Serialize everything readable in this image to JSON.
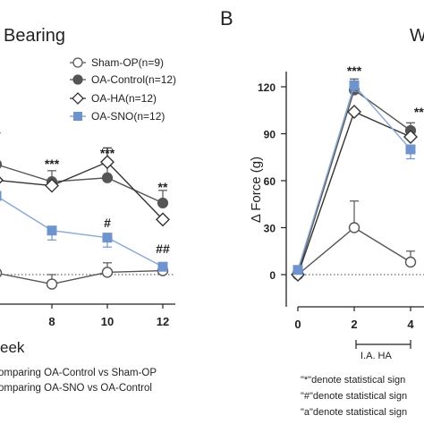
{
  "panel_a": {
    "title": "Bearing",
    "xlabel": "eek",
    "legend": [
      "Sham-OP(n=9)",
      "OA-Control(n=12)",
      "OA-HA(n=12)",
      "OA-SNO(n=12)"
    ],
    "footnotes": [
      "omparing OA-Control vs Sham-OP",
      "omparing OA-SNO vs OA-Control"
    ]
  },
  "panel_b": {
    "letter": "B",
    "title": "W",
    "ylabel": "Δ Force (g)",
    "bracket_label": "I.A. HA",
    "footnotes": [
      "\"*\"denote statistical sign",
      "\"#\"denote statistical sign",
      "\"a\"denote statistical sign"
    ]
  },
  "colors": {
    "sham": "#555555",
    "control": "#555555",
    "ha": "#333333",
    "sno": "#6f94cd",
    "sno_line": "#88a8d8"
  },
  "chart_data": [
    {
      "type": "line",
      "title": "Bearing",
      "xlabel": "eek",
      "ylabel": "",
      "x": [
        6,
        8,
        10,
        12
      ],
      "xticks": [
        "8",
        "10",
        "12"
      ],
      "series": [
        {
          "name": "Sham-OP(n=9)",
          "marker": "open-circle",
          "values": [
            0.2,
            -1.2,
            0.3,
            0.5
          ],
          "err": [
            0,
            1.2,
            1.2,
            0.8
          ]
        },
        {
          "name": "OA-Control(n=12)",
          "marker": "filled-circle",
          "values": [
            14,
            11.8,
            12.3,
            9.1
          ],
          "err": [
            0,
            1.4,
            2.0,
            1.6
          ]
        },
        {
          "name": "OA-HA(n=12)",
          "marker": "diamond",
          "values": [
            12,
            11.3,
            14.3,
            7.0
          ],
          "err": [
            0,
            0,
            1.8,
            0
          ]
        },
        {
          "name": "OA-SNO(n=12)",
          "marker": "square",
          "values": [
            10,
            5.6,
            4.7,
            1.0
          ],
          "err": [
            0,
            1.2,
            1.2,
            0.5
          ]
        }
      ],
      "annotations": [
        {
          "x": 6,
          "text": "*"
        },
        {
          "x": 8,
          "text": "***"
        },
        {
          "x": 10,
          "text": "***"
        },
        {
          "x": 10,
          "text": "#"
        },
        {
          "x": 12,
          "text": "**"
        },
        {
          "x": 12,
          "text": "##"
        }
      ]
    },
    {
      "type": "line",
      "title": "W",
      "xlabel": "",
      "ylabel": "Δ Force (g)",
      "x": [
        0,
        2,
        4
      ],
      "xticks": [
        "0",
        "2",
        "4"
      ],
      "yticks": [
        "0",
        "30",
        "60",
        "90",
        "120"
      ],
      "ylim": [
        -20,
        140
      ],
      "series": [
        {
          "name": "Sham-OP(n=9)",
          "marker": "open-circle",
          "values": [
            0,
            30,
            8
          ],
          "err": [
            0,
            17,
            7
          ]
        },
        {
          "name": "OA-Control(n=12)",
          "marker": "filled-circle",
          "values": [
            1,
            118,
            92
          ],
          "err": [
            2,
            7,
            5
          ]
        },
        {
          "name": "OA-HA(n=12)",
          "marker": "diamond",
          "values": [
            0,
            104,
            88
          ],
          "err": [
            0,
            0,
            0
          ]
        },
        {
          "name": "OA-SNO(n=12)",
          "marker": "square",
          "values": [
            3,
            121,
            80
          ],
          "err": [
            2,
            4,
            6
          ]
        }
      ],
      "annotations": [
        {
          "x": 2,
          "text": "***"
        },
        {
          "x": 4,
          "text": "***"
        }
      ]
    }
  ]
}
